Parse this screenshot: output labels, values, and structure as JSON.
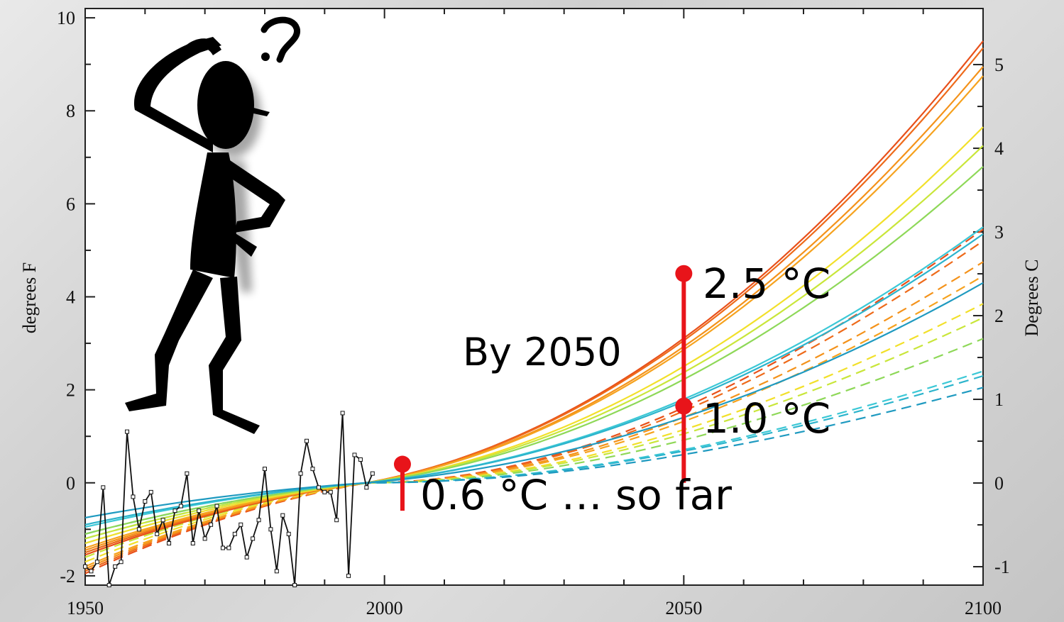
{
  "chart_data": {
    "type": "line",
    "xlim": [
      1950,
      2100
    ],
    "ylim": [
      -2.2,
      10.2
    ],
    "ylim_right": [
      -1.22,
      5.67
    ],
    "xticks": [
      "1950",
      "2000",
      "2050",
      "2100"
    ],
    "yticks_left": [
      "-2",
      "0",
      "2",
      "4",
      "6",
      "8",
      "10"
    ],
    "yticks_right": [
      "-1",
      "0",
      "1",
      "2",
      "3",
      "4",
      "5"
    ],
    "ylabel": "degrees F",
    "ylabel_right": "Degrees C",
    "observed": {
      "x": [
        1950,
        1951,
        1952,
        1953,
        1954,
        1955,
        1956,
        1957,
        1958,
        1959,
        1960,
        1961,
        1962,
        1963,
        1964,
        1965,
        1966,
        1967,
        1968,
        1969,
        1970,
        1971,
        1972,
        1973,
        1974,
        1975,
        1976,
        1977,
        1978,
        1979,
        1980,
        1981,
        1982,
        1983,
        1984,
        1985,
        1986,
        1987,
        1988,
        1989,
        1990,
        1991,
        1992,
        1993,
        1994,
        1995,
        1996,
        1997,
        1998
      ],
      "y": [
        -1.8,
        -1.9,
        -1.7,
        -0.1,
        -2.2,
        -1.8,
        -1.7,
        1.1,
        -0.3,
        -1.0,
        -0.4,
        -0.2,
        -1.1,
        -0.8,
        -1.3,
        -0.6,
        -0.5,
        0.2,
        -1.3,
        -0.6,
        -1.2,
        -0.9,
        -0.5,
        -1.4,
        -1.4,
        -1.1,
        -0.9,
        -1.6,
        -1.2,
        -0.8,
        0.3,
        -1.0,
        -1.9,
        -0.7,
        -1.1,
        -2.2,
        0.2,
        0.9,
        0.3,
        -0.1,
        -0.2,
        -0.2,
        -0.8,
        1.5,
        -2.0,
        0.6,
        0.5,
        -0.1,
        0.2
      ]
    },
    "projections": {
      "solid": [
        {
          "color": "#e8501a",
          "y1950": -1.55,
          "y2100": 9.5
        },
        {
          "color": "#ee6a1a",
          "y1950": -1.5,
          "y2100": 9.35
        },
        {
          "color": "#f4921a",
          "y1950": -1.45,
          "y2100": 8.95
        },
        {
          "color": "#f6a21e",
          "y1950": -1.4,
          "y2100": 8.75
        },
        {
          "color": "#f2e02a",
          "y1950": -1.3,
          "y2100": 7.65
        },
        {
          "color": "#c9e63a",
          "y1950": -1.2,
          "y2100": 7.25
        },
        {
          "color": "#8ed858",
          "y1950": -1.1,
          "y2100": 6.8
        },
        {
          "color": "#3cc8d6",
          "y1950": -0.95,
          "y2100": 5.5
        },
        {
          "color": "#2cb4cc",
          "y1950": -0.9,
          "y2100": 5.35
        },
        {
          "color": "#1f9ac0",
          "y1950": -0.75,
          "y2100": 4.3
        }
      ],
      "dashed": [
        {
          "color": "#e8501a",
          "y1950": -1.95,
          "y2100": 5.45
        },
        {
          "color": "#ee6a1a",
          "y1950": -1.9,
          "y2100": 5.2
        },
        {
          "color": "#f4921a",
          "y1950": -1.85,
          "y2100": 4.75
        },
        {
          "color": "#f6a21e",
          "y1950": -1.8,
          "y2100": 4.45
        },
        {
          "color": "#f2e02a",
          "y1950": -1.7,
          "y2100": 3.85
        },
        {
          "color": "#c9e63a",
          "y1950": -1.6,
          "y2100": 3.55
        },
        {
          "color": "#8ed858",
          "y1950": -1.5,
          "y2100": 3.1
        },
        {
          "color": "#3cc8d6",
          "y1950": -1.3,
          "y2100": 2.4
        },
        {
          "color": "#2cb4cc",
          "y1950": -1.2,
          "y2100": 2.3
        },
        {
          "color": "#1f9ac0",
          "y1950": -1.1,
          "y2100": 2.05
        }
      ]
    },
    "markers": [
      {
        "label": "0.6 °C … so far",
        "x": 2003,
        "y_top": 0.4,
        "y_bottom": -0.6
      },
      {
        "label": "2.5 °C",
        "x": 2050,
        "y": 4.5
      },
      {
        "label": "1.0 °C",
        "x": 2050,
        "y": 1.65
      }
    ],
    "annotation": "By 2050",
    "marker_color": "#e8141a"
  }
}
